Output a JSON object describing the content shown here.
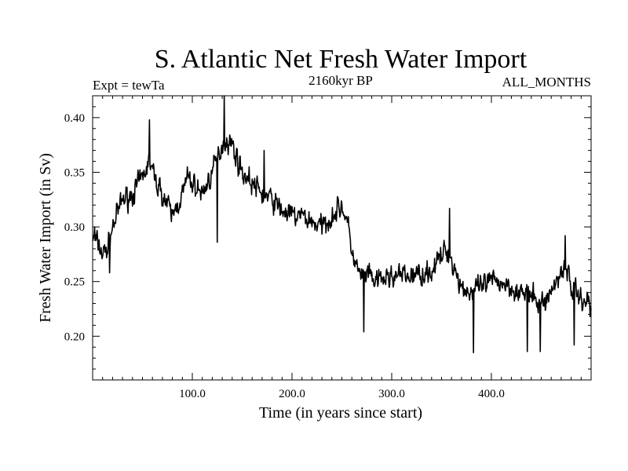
{
  "chart_data": {
    "type": "line",
    "title": "S. Atlantic Net Fresh Water Import",
    "subtitle_left": "Expt = tewTa",
    "subtitle_center": "2160kyr BP",
    "subtitle_right": "ALL_MONTHS",
    "xlabel": "Time (in years since start)",
    "ylabel": "Fresh Water Import (in Sv)",
    "xlim": [
      0,
      500
    ],
    "ylim": [
      0.16,
      0.42
    ],
    "x_ticks": [
      100,
      200,
      300,
      400
    ],
    "x_tick_labels": [
      "100.0",
      "200.0",
      "300.0",
      "400.0"
    ],
    "y_ticks": [
      0.2,
      0.25,
      0.3,
      0.35,
      0.4
    ],
    "y_tick_labels": [
      "0.20",
      "0.25",
      "0.30",
      "0.35",
      "0.40"
    ],
    "grid": false,
    "series": [
      {
        "name": "Fresh Water Import",
        "color": "#000000",
        "trend_x": [
          0,
          5,
          10,
          15,
          20,
          30,
          40,
          50,
          57,
          62,
          70,
          80,
          90,
          95,
          100,
          110,
          120,
          130,
          135,
          140,
          150,
          160,
          170,
          180,
          190,
          200,
          210,
          220,
          230,
          240,
          250,
          255,
          262,
          268,
          275,
          285,
          300,
          320,
          340,
          355,
          360,
          370,
          380,
          390,
          400,
          410,
          420,
          430,
          440,
          450,
          460,
          470,
          475,
          480,
          490,
          500
        ],
        "trend_y": [
          0.29,
          0.285,
          0.275,
          0.28,
          0.3,
          0.325,
          0.33,
          0.345,
          0.36,
          0.345,
          0.33,
          0.31,
          0.33,
          0.345,
          0.34,
          0.33,
          0.35,
          0.375,
          0.38,
          0.375,
          0.35,
          0.34,
          0.33,
          0.325,
          0.315,
          0.31,
          0.31,
          0.305,
          0.3,
          0.31,
          0.32,
          0.305,
          0.27,
          0.255,
          0.255,
          0.25,
          0.255,
          0.255,
          0.26,
          0.28,
          0.27,
          0.245,
          0.24,
          0.245,
          0.25,
          0.25,
          0.245,
          0.24,
          0.235,
          0.23,
          0.24,
          0.26,
          0.265,
          0.245,
          0.235,
          0.23
        ],
        "noise_amplitude": 0.022,
        "spikes": [
          {
            "x": 2,
            "y": 0.3
          },
          {
            "x": 17,
            "y": 0.258
          },
          {
            "x": 57,
            "y": 0.398
          },
          {
            "x": 125,
            "y": 0.286
          },
          {
            "x": 132,
            "y": 0.42
          },
          {
            "x": 172,
            "y": 0.37
          },
          {
            "x": 272,
            "y": 0.204
          },
          {
            "x": 358,
            "y": 0.317
          },
          {
            "x": 382,
            "y": 0.185
          },
          {
            "x": 436,
            "y": 0.186
          },
          {
            "x": 449,
            "y": 0.186
          },
          {
            "x": 474,
            "y": 0.292
          },
          {
            "x": 483,
            "y": 0.192
          },
          {
            "x": 499,
            "y": 0.218
          }
        ]
      }
    ]
  }
}
